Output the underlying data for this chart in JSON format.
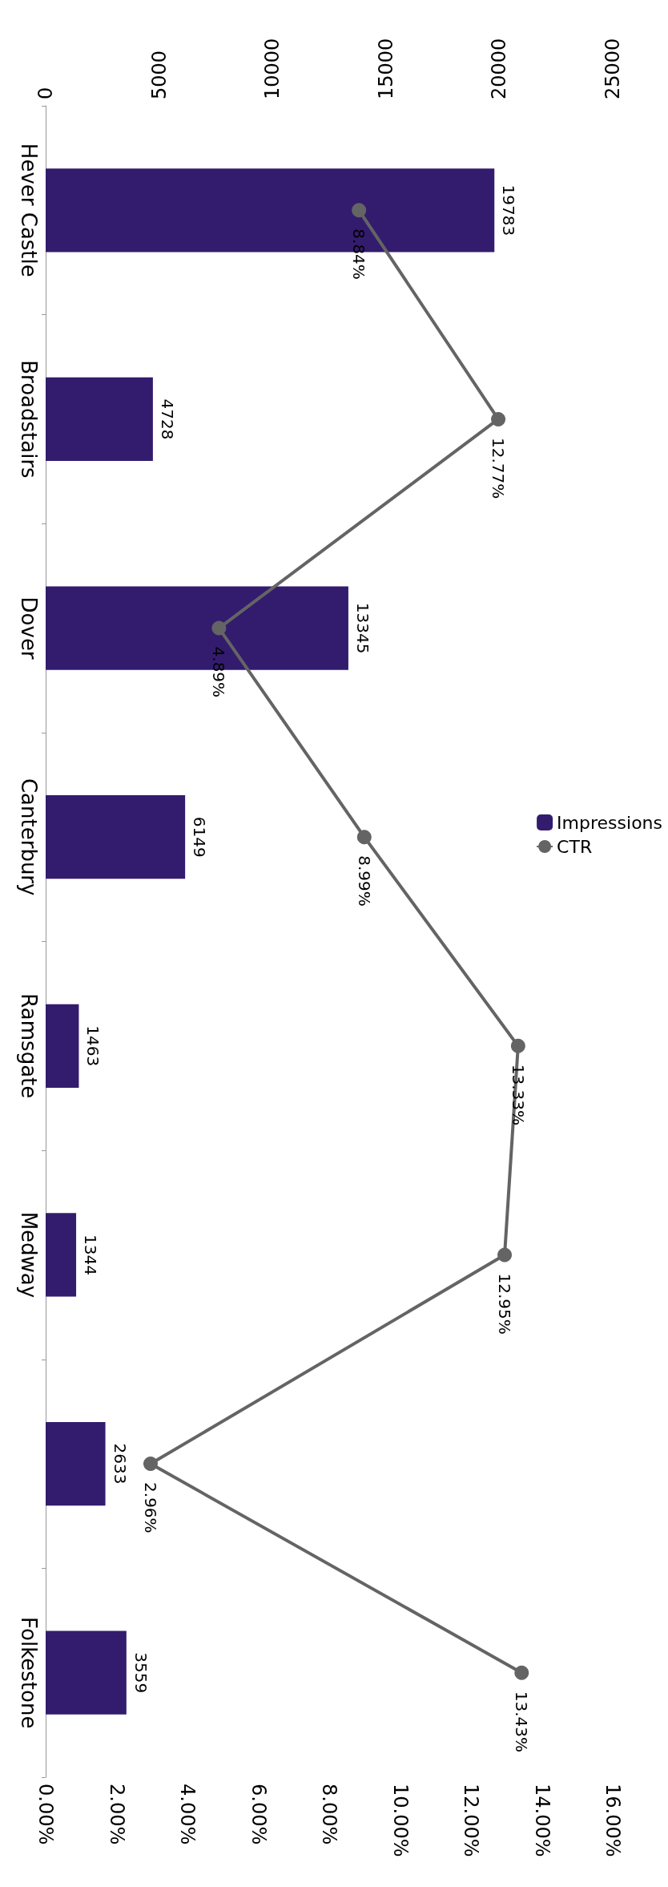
{
  "chart_data": {
    "type": "bar",
    "orientation": "horizontal",
    "categories": [
      "Hever Castle",
      "Broadstairs",
      "Dover",
      "Canterbury",
      "Ramsgate",
      "Medway",
      null,
      "Folkestone"
    ],
    "series": [
      {
        "name": "Impressions",
        "axis": "x2",
        "color": "#331c6e",
        "values": [
          19783,
          4728,
          13345,
          6149,
          1463,
          1344,
          2633,
          3559
        ]
      },
      {
        "name": "CTR",
        "type": "line",
        "color": "#646464",
        "marker": "circle",
        "values": [
          8.84,
          12.77,
          4.89,
          8.99,
          13.33,
          12.95,
          2.96,
          13.43
        ],
        "value_labels": [
          "8.84%",
          "12.77%",
          "4.89%",
          "8.99%",
          "13.33%",
          "12.95%",
          "2.96%",
          "13.43%"
        ]
      }
    ],
    "data_labels": true,
    "x2lim": [
      0,
      25000
    ],
    "x2ticks": [
      0,
      5000,
      10000,
      15000,
      20000,
      25000
    ],
    "xlim": [
      0,
      16
    ],
    "xticks": [
      {
        "value": 0,
        "label": "0.00%"
      },
      {
        "value": 2,
        "label": "2.00%"
      },
      {
        "value": 4,
        "label": "4.00%"
      },
      {
        "value": 6,
        "label": "6.00%"
      },
      {
        "value": 8,
        "label": "8.00%"
      },
      {
        "value": 10,
        "label": "10.00%"
      },
      {
        "value": 12,
        "label": "12.00%"
      },
      {
        "value": 14,
        "label": "14.00%"
      },
      {
        "value": 16,
        "label": "16.00%"
      }
    ],
    "legend": "right",
    "grid": false
  }
}
